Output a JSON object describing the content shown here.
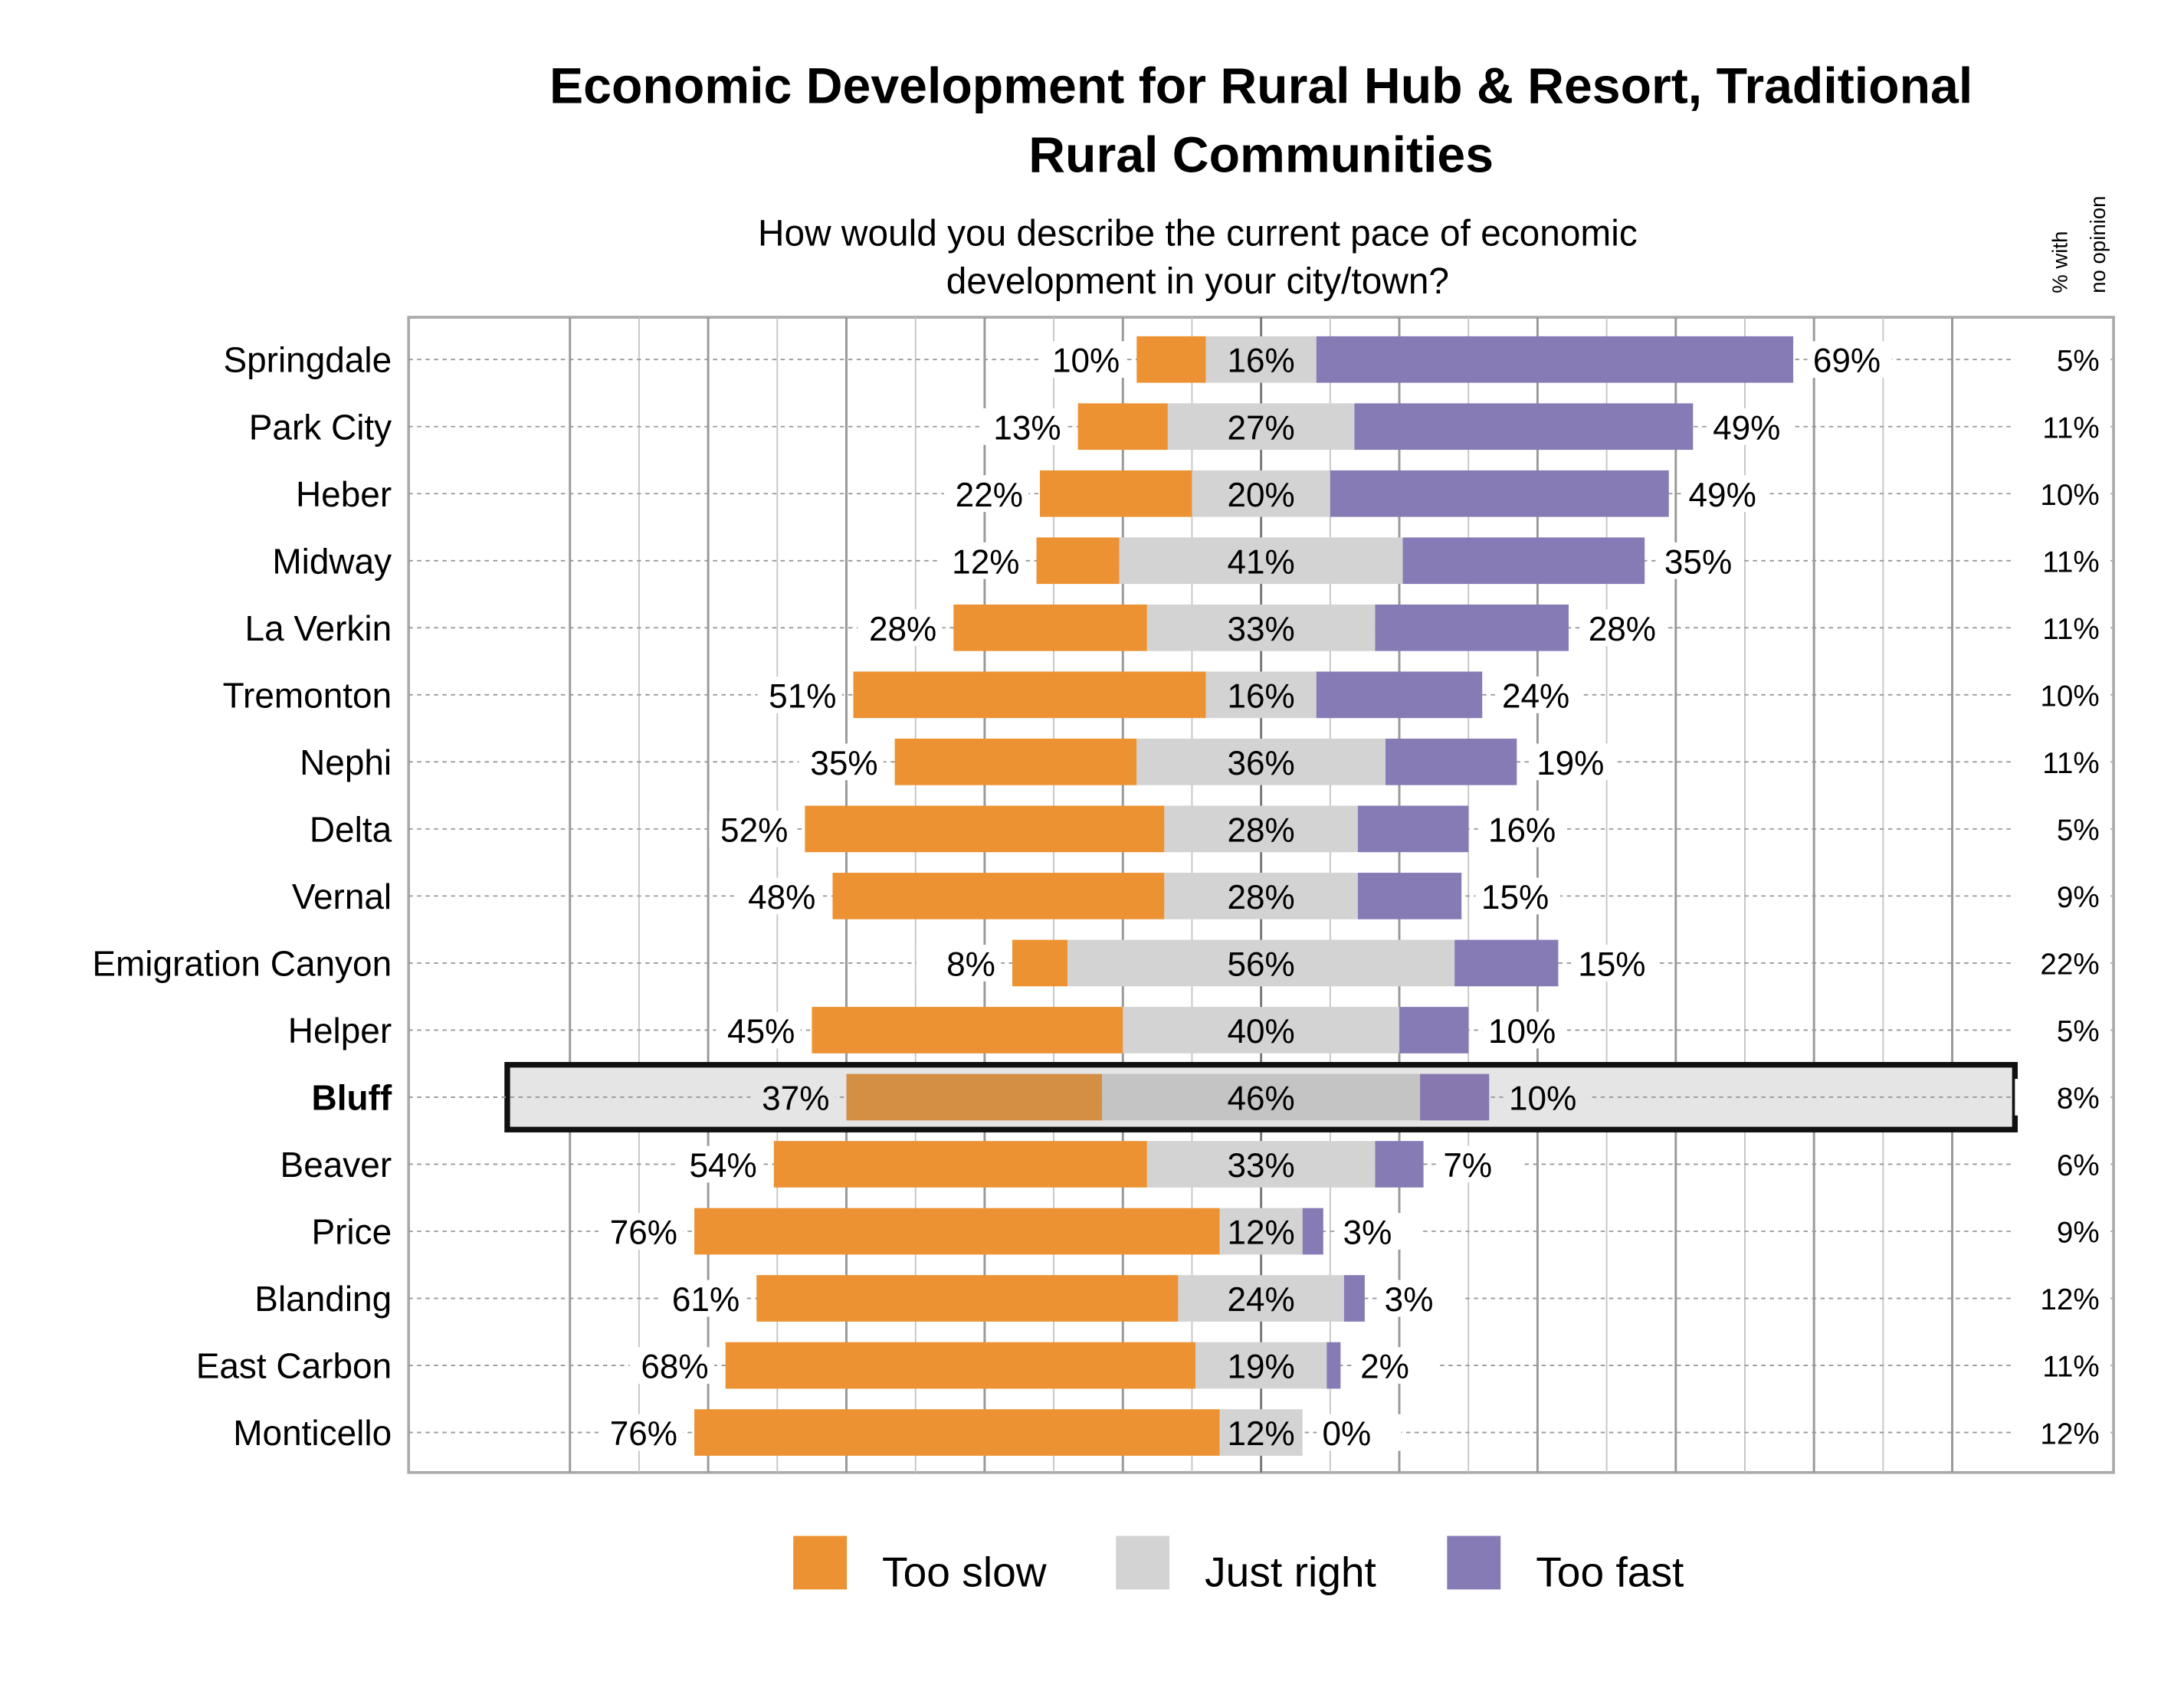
{
  "chart_data": {
    "type": "bar",
    "orientation": "horizontal",
    "stacked": "diverging",
    "title_lines": [
      "Economic Development for Rural Hub & Resort, Traditional",
      "Rural Communities"
    ],
    "subtitle_lines": [
      "How would you describe the current pace of economic",
      "development in your city/town?"
    ],
    "no_opinion_header_lines": [
      "% with",
      "no opinion"
    ],
    "categories": [
      "Springdale",
      "Park City",
      "Heber",
      "Midway",
      "La Verkin",
      "Tremonton",
      "Nephi",
      "Delta",
      "Vernal",
      "Emigration Canyon",
      "Helper",
      "Bluff",
      "Beaver",
      "Price",
      "Blanding",
      "East Carbon",
      "Monticello"
    ],
    "highlighted_category": "Bluff",
    "series": [
      {
        "name": "Too slow",
        "color": "#ec9233",
        "highlight_color": "#d48f45",
        "values": [
          10,
          13,
          22,
          12,
          28,
          51,
          35,
          52,
          48,
          8,
          45,
          37,
          54,
          76,
          61,
          68,
          76
        ]
      },
      {
        "name": "Just right",
        "color": "#d3d3d3",
        "highlight_color": "#c4c4c4",
        "values": [
          16,
          27,
          20,
          41,
          33,
          16,
          36,
          28,
          28,
          56,
          40,
          46,
          33,
          12,
          24,
          19,
          12
        ]
      },
      {
        "name": "Too fast",
        "color": "#877bb6",
        "highlight_color": "#8878b0",
        "values": [
          69,
          49,
          49,
          35,
          28,
          24,
          19,
          16,
          15,
          15,
          10,
          10,
          7,
          3,
          3,
          2,
          0
        ]
      }
    ],
    "no_opinion": [
      5,
      11,
      10,
      11,
      11,
      10,
      11,
      5,
      9,
      22,
      5,
      8,
      6,
      9,
      12,
      11,
      12
    ],
    "value_suffix": "%",
    "xlim": [
      -123,
      123
    ],
    "grid": true,
    "legend_position": "bottom"
  }
}
